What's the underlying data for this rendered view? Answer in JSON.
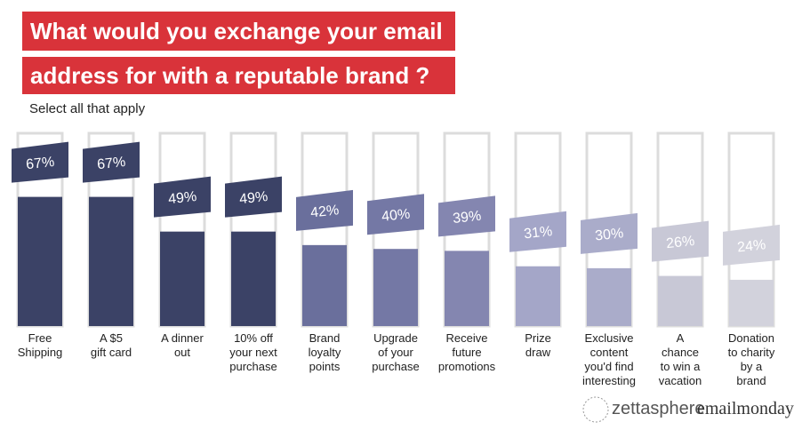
{
  "chart_data": {
    "type": "bar",
    "title_lines": [
      "What would you exchange your email",
      "address for with a reputable brand ?"
    ],
    "subtitle": "Select all that apply",
    "categories": [
      "Free\nShipping",
      "A $5\ngift card",
      "A dinner\nout",
      "10% off\nyour next\npurchase",
      "Brand\nloyalty\npoints",
      "Upgrade\nof your\npurchase",
      "Receive\nfuture\npromotions",
      "Prize\ndraw",
      "Exclusive\ncontent\nyou'd find\ninteresting",
      "A\nchance\nto win a\nvacation",
      "Donation\nto charity\nby a\nbrand"
    ],
    "values": [
      67,
      67,
      49,
      49,
      42,
      40,
      39,
      31,
      30,
      26,
      24
    ],
    "value_labels": [
      "67%",
      "67%",
      "49%",
      "49%",
      "42%",
      "40%",
      "39%",
      "31%",
      "30%",
      "26%",
      "24%"
    ],
    "colors": [
      "#3b4266",
      "#3b4266",
      "#3b4266",
      "#3b4266",
      "#6a6f9c",
      "#7478a5",
      "#8486b0",
      "#a4a6c8",
      "#aaacca",
      "#c8c8d6",
      "#d2d2dc"
    ],
    "ylim": [
      0,
      100
    ],
    "brands": [
      "zettasphere",
      "emailmonday"
    ]
  }
}
